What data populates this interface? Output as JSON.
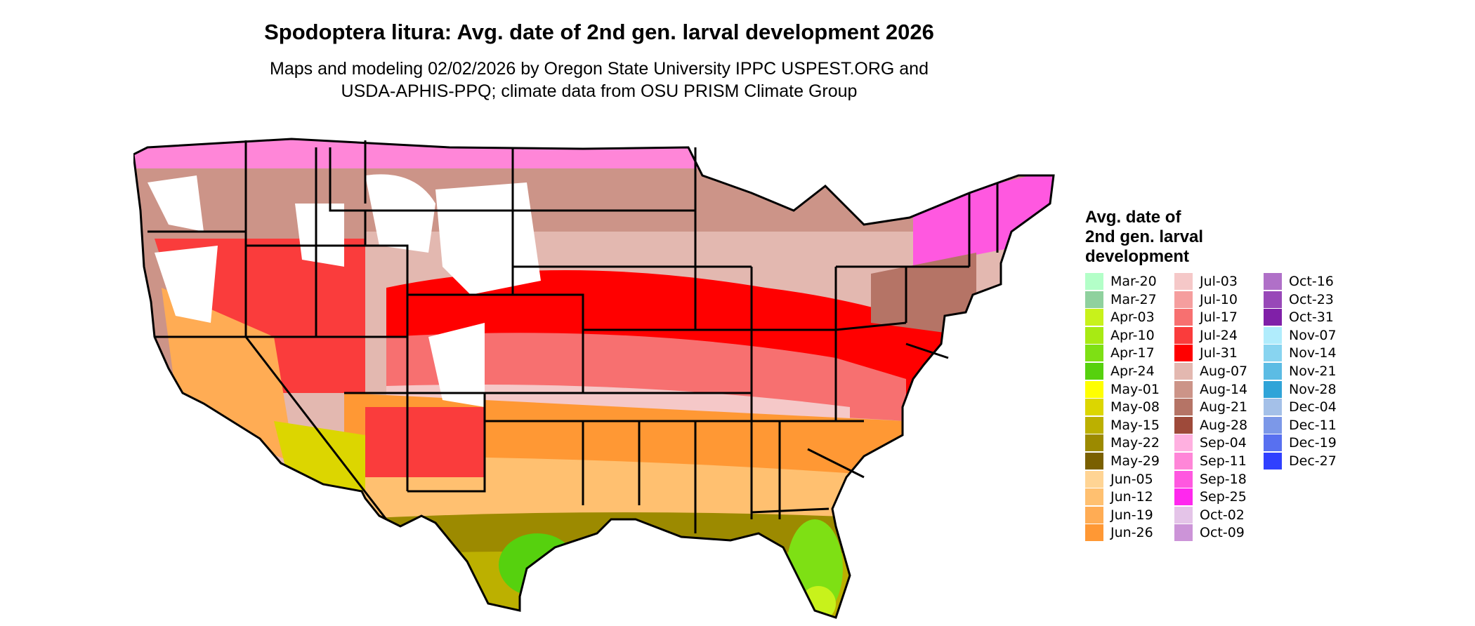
{
  "title": "Spodoptera litura: Avg. date of 2nd gen. larval development 2026",
  "subtitle_lines": [
    "Maps and modeling 02/02/2026 by Oregon State University IPPC USPEST.ORG and",
    "USDA-APHIS-PPQ; climate data from OSU PRISM Climate Group"
  ],
  "legend": {
    "title_lines": [
      "Avg. date of",
      "2nd gen. larval",
      "development"
    ],
    "items": [
      {
        "label": "Mar-20",
        "color": "#b3ffc8"
      },
      {
        "label": "Mar-27",
        "color": "#8fd19e"
      },
      {
        "label": "Apr-03",
        "color": "#c8f21b"
      },
      {
        "label": "Apr-10",
        "color": "#a8ea13"
      },
      {
        "label": "Apr-17",
        "color": "#7ee014"
      },
      {
        "label": "Apr-24",
        "color": "#56d10e"
      },
      {
        "label": "May-01",
        "color": "#ffff00"
      },
      {
        "label": "May-08",
        "color": "#dcd600"
      },
      {
        "label": "May-15",
        "color": "#bcb000"
      },
      {
        "label": "May-22",
        "color": "#9c8a00"
      },
      {
        "label": "May-29",
        "color": "#7a6000"
      },
      {
        "label": "Jun-05",
        "color": "#ffd494"
      },
      {
        "label": "Jun-12",
        "color": "#ffc070"
      },
      {
        "label": "Jun-19",
        "color": "#ffac54"
      },
      {
        "label": "Jun-26",
        "color": "#ff9834"
      },
      {
        "label": "Jul-03",
        "color": "#f5c8c8"
      },
      {
        "label": "Jul-10",
        "color": "#f59e9e"
      },
      {
        "label": "Jul-17",
        "color": "#f77070"
      },
      {
        "label": "Jul-24",
        "color": "#fa3c3c"
      },
      {
        "label": "Jul-31",
        "color": "#ff0000"
      },
      {
        "label": "Aug-07",
        "color": "#e3b8b0"
      },
      {
        "label": "Aug-14",
        "color": "#cc9488"
      },
      {
        "label": "Aug-21",
        "color": "#b57466"
      },
      {
        "label": "Aug-28",
        "color": "#9e4a3a"
      },
      {
        "label": "Sep-04",
        "color": "#ffb0e0"
      },
      {
        "label": "Sep-11",
        "color": "#ff86d8"
      },
      {
        "label": "Sep-18",
        "color": "#ff58e0"
      },
      {
        "label": "Sep-25",
        "color": "#ff28ee"
      },
      {
        "label": "Oct-02",
        "color": "#e4c4e8"
      },
      {
        "label": "Oct-09",
        "color": "#cc94d8"
      },
      {
        "label": "Oct-16",
        "color": "#b070c8"
      },
      {
        "label": "Oct-23",
        "color": "#9848b8"
      },
      {
        "label": "Oct-31",
        "color": "#8020a8"
      },
      {
        "label": "Nov-07",
        "color": "#b0ecfc"
      },
      {
        "label": "Nov-14",
        "color": "#88d4f0"
      },
      {
        "label": "Nov-21",
        "color": "#5cbce4"
      },
      {
        "label": "Nov-28",
        "color": "#30a4d8"
      },
      {
        "label": "Dec-04",
        "color": "#a4c0e8"
      },
      {
        "label": "Dec-11",
        "color": "#7c98e8"
      },
      {
        "label": "Dec-19",
        "color": "#5870f0"
      },
      {
        "label": "Dec-27",
        "color": "#3040ff"
      }
    ]
  }
}
